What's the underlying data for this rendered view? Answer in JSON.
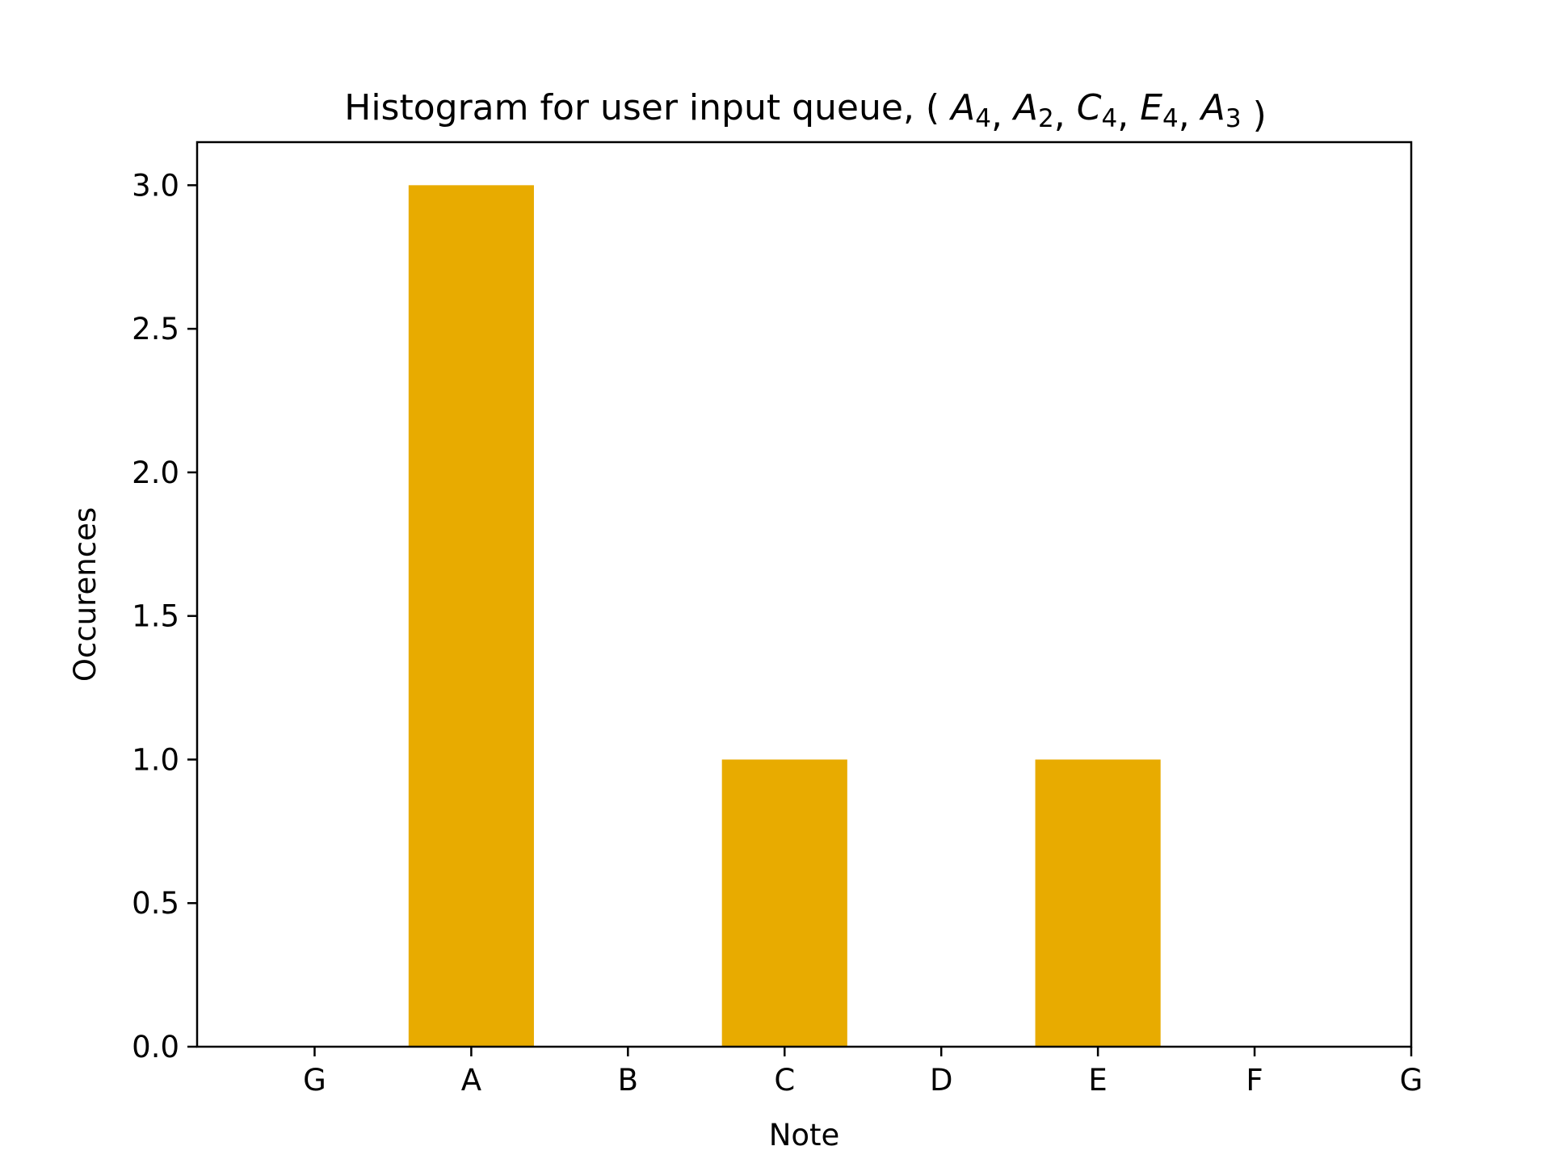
{
  "chart_data": {
    "type": "bar",
    "title": {
      "prefix": "Histogram for user input queue, ",
      "open": "(",
      "close": ")",
      "notes": [
        {
          "letter": "A",
          "octave": "4"
        },
        {
          "letter": "A",
          "octave": "2"
        },
        {
          "letter": "C",
          "octave": "4"
        },
        {
          "letter": "E",
          "octave": "4"
        },
        {
          "letter": "A",
          "octave": "3"
        }
      ]
    },
    "xlabel": "Note",
    "ylabel": "Occurences",
    "categories": [
      "G",
      "A",
      "B",
      "C",
      "D",
      "E",
      "F",
      "G"
    ],
    "values": [
      0,
      3,
      0,
      1,
      0,
      1,
      0,
      0
    ],
    "xlim": [
      -0.75,
      7
    ],
    "ylim": [
      0,
      3.15
    ],
    "yticks": [
      0.0,
      0.5,
      1.0,
      1.5,
      2.0,
      2.5,
      3.0
    ],
    "ytick_format": "0.0",
    "bar_width": 0.8,
    "bar_color": "#E8AB00",
    "grid": false,
    "legend": "none"
  }
}
